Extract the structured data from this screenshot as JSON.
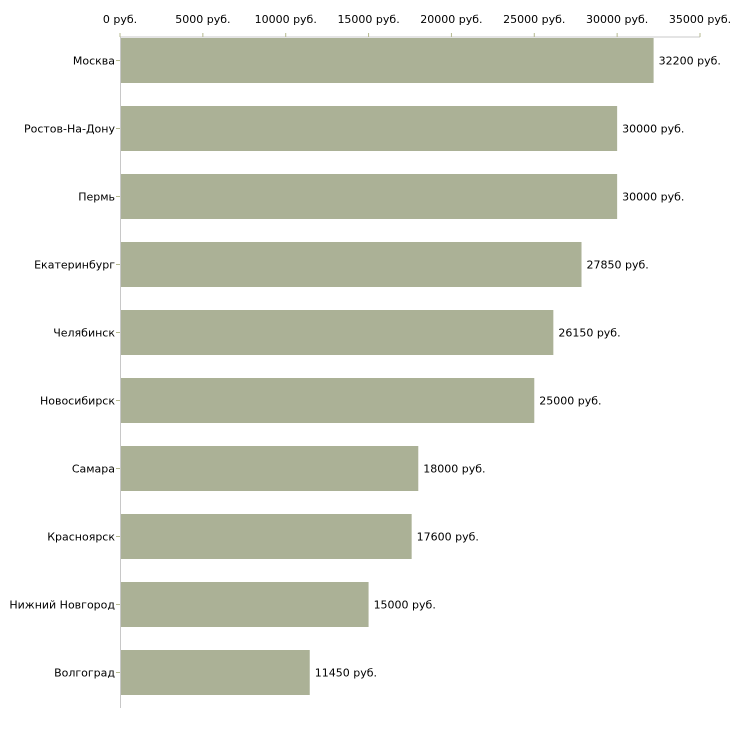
{
  "chart_data": {
    "type": "bar",
    "orientation": "horizontal",
    "title": "",
    "xlabel": "",
    "ylabel": "",
    "unit_suffix": " руб.",
    "xlim": [
      0,
      35000
    ],
    "x_ticks": [
      0,
      5000,
      10000,
      15000,
      20000,
      25000,
      30000,
      35000
    ],
    "x_tick_labels": [
      "0 руб.",
      "5000 руб.",
      "10000 руб.",
      "15000 руб.",
      "20000 руб.",
      "25000 руб.",
      "30000 руб.",
      "35000 руб."
    ],
    "categories": [
      "Москва",
      "Ростов-На-Дону",
      "Пермь",
      "Екатеринбург",
      "Челябинск",
      "Новосибирск",
      "Самара",
      "Красноярск",
      "Нижний Новгород",
      "Волгоград"
    ],
    "values": [
      32200,
      30000,
      30000,
      27850,
      26150,
      25000,
      18000,
      17600,
      15000,
      11450
    ],
    "value_labels": [
      "32200 руб.",
      "30000 руб.",
      "30000 руб.",
      "27850 руб.",
      "26150 руб.",
      "25000 руб.",
      "18000 руб.",
      "17600 руб.",
      "15000 руб.",
      "11450 руб."
    ],
    "grid": false,
    "colors": {
      "bar": "#abb196",
      "axis": "#c8c8c8",
      "tick": "#b5b98f"
    }
  }
}
